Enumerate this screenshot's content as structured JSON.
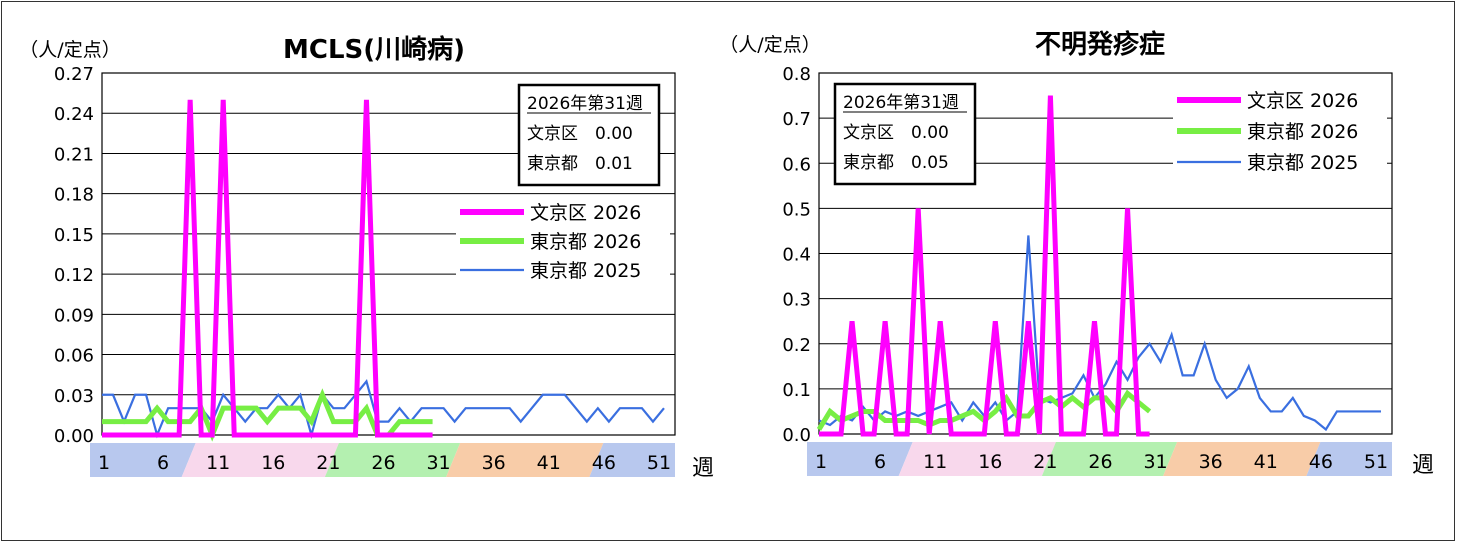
{
  "colors": {
    "bunkyo_2026": "#ff00ff",
    "tokyo_2026": "#77ee44",
    "tokyo_2025": "#3a6fe0",
    "band_blue": "#b8c8ee",
    "band_pink": "#f8d8ec",
    "band_green": "#b4f0b0",
    "band_orange": "#f8cca8"
  },
  "week_label": "週",
  "chart_data": [
    {
      "type": "line",
      "title": "MCLS(川崎病)",
      "ylabel": "（人/定点）",
      "ylim": [
        0,
        0.27
      ],
      "yticks": [
        "0.00",
        "0.03",
        "0.06",
        "0.09",
        "0.12",
        "0.15",
        "0.18",
        "0.21",
        "0.24",
        "0.27"
      ],
      "xticks": [
        "1",
        "6",
        "11",
        "16",
        "21",
        "26",
        "31",
        "36",
        "41",
        "46",
        "51"
      ],
      "weeks": 53,
      "info_box": {
        "line1": "2026年第31週",
        "line2": "文京区　0.00",
        "line3": "東京都　0.01"
      },
      "legend": [
        "文京区 2026",
        "東京都 2026",
        "東京都 2025"
      ],
      "series": [
        {
          "name": "文京区 2026",
          "values": [
            0,
            0,
            0,
            0,
            0,
            0,
            0,
            0,
            0.25,
            0,
            0,
            0.25,
            0,
            0,
            0,
            0,
            0,
            0,
            0,
            0,
            0,
            0,
            0,
            0,
            0.25,
            0,
            0,
            0,
            0,
            0,
            0
          ]
        },
        {
          "name": "東京都 2026",
          "values": [
            0.01,
            0.01,
            0.01,
            0.01,
            0.01,
            0.02,
            0.01,
            0.01,
            0.01,
            0.02,
            0,
            0.02,
            0.02,
            0.02,
            0.02,
            0.01,
            0.02,
            0.02,
            0.02,
            0.01,
            0.03,
            0.01,
            0.01,
            0.01,
            0.02,
            0,
            0,
            0.01,
            0.01,
            0.01,
            0.01
          ]
        },
        {
          "name": "東京都 2025",
          "values": [
            0.03,
            0.03,
            0.01,
            0.03,
            0.03,
            0,
            0.02,
            0.02,
            0.02,
            0.02,
            0.01,
            0.03,
            0.02,
            0.01,
            0.02,
            0.02,
            0.03,
            0.02,
            0.03,
            0,
            0.03,
            0.02,
            0.02,
            0.03,
            0.04,
            0.01,
            0.01,
            0.02,
            0.01,
            0.02,
            0.02,
            0.02,
            0.01,
            0.02,
            0.02,
            0.02,
            0.02,
            0.02,
            0.01,
            0.02,
            0.03,
            0.03,
            0.03,
            0.02,
            0.01,
            0.02,
            0.01,
            0.02,
            0.02,
            0.02,
            0.01,
            0.02
          ]
        }
      ]
    },
    {
      "type": "line",
      "title": "不明発疹症",
      "ylabel": "（人/定点）",
      "ylim": [
        0,
        0.8
      ],
      "yticks": [
        "0.0",
        "0.1",
        "0.2",
        "0.3",
        "0.4",
        "0.5",
        "0.6",
        "0.7",
        "0.8"
      ],
      "xticks": [
        "1",
        "6",
        "11",
        "16",
        "21",
        "26",
        "31",
        "36",
        "41",
        "46",
        "51"
      ],
      "weeks": 53,
      "info_box": {
        "line1": "2026年第31週",
        "line2": "文京区　0.00",
        "line3": "東京都　0.05"
      },
      "legend": [
        "文京区 2026",
        "東京都 2026",
        "東京都 2025"
      ],
      "series": [
        {
          "name": "文京区 2026",
          "values": [
            0,
            0,
            0,
            0.25,
            0,
            0,
            0.25,
            0,
            0,
            0.5,
            0,
            0.25,
            0,
            0,
            0,
            0,
            0.25,
            0,
            0,
            0.25,
            0,
            0.75,
            0,
            0,
            0,
            0.25,
            0,
            0,
            0.5,
            0,
            0
          ]
        },
        {
          "name": "東京都 2026",
          "values": [
            0.01,
            0.05,
            0.03,
            0.04,
            0.05,
            0.05,
            0.03,
            0.03,
            0.03,
            0.03,
            0.02,
            0.03,
            0.03,
            0.04,
            0.05,
            0.03,
            0.05,
            0.08,
            0.04,
            0.04,
            0.07,
            0.08,
            0.06,
            0.08,
            0.06,
            0.08,
            0.08,
            0.05,
            0.09,
            0.07,
            0.05
          ]
        },
        {
          "name": "東京都 2025",
          "values": [
            0.03,
            0.02,
            0.04,
            0.03,
            0.06,
            0.03,
            0.05,
            0.04,
            0.05,
            0.04,
            0.05,
            0.06,
            0.07,
            0.03,
            0.07,
            0.04,
            0.07,
            0.03,
            0.05,
            0.44,
            0.08,
            0.07,
            0.08,
            0.09,
            0.13,
            0.08,
            0.11,
            0.16,
            0.12,
            0.17,
            0.2,
            0.16,
            0.22,
            0.13,
            0.13,
            0.2,
            0.12,
            0.08,
            0.1,
            0.15,
            0.08,
            0.05,
            0.05,
            0.08,
            0.04,
            0.03,
            0.01,
            0.05,
            0.05,
            0.05,
            0.05,
            0.05
          ]
        }
      ]
    }
  ]
}
